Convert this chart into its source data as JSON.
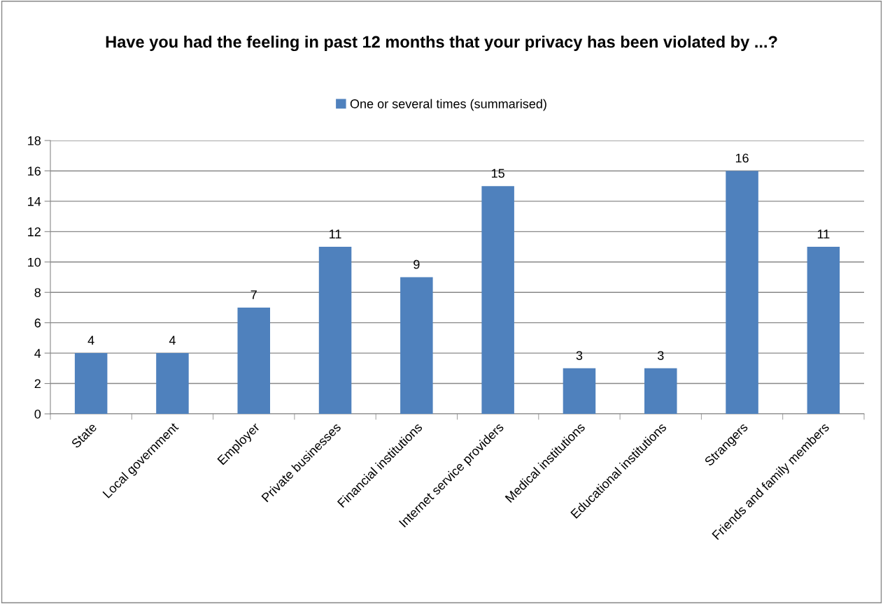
{
  "chart_data": {
    "type": "bar",
    "title": "Have you had the feeling in past 12 months that your privacy has been violated by ...?",
    "categories": [
      "State",
      "Local government",
      "Employer",
      "Private businesses",
      "Financial institutions",
      "Internet service providers",
      "Medical institutions",
      "Educational institutions",
      "Strangers",
      "Friends and family members"
    ],
    "series": [
      {
        "name": "One or several times (summarised)",
        "color": "#4f81bd",
        "values": [
          4,
          4,
          7,
          11,
          9,
          15,
          3,
          3,
          16,
          11
        ]
      }
    ],
    "ylim": [
      0,
      18
    ],
    "yticks": [
      0,
      2,
      4,
      6,
      8,
      10,
      12,
      14,
      16,
      18
    ],
    "grid": "y",
    "legend": "top",
    "data_labels": true
  }
}
